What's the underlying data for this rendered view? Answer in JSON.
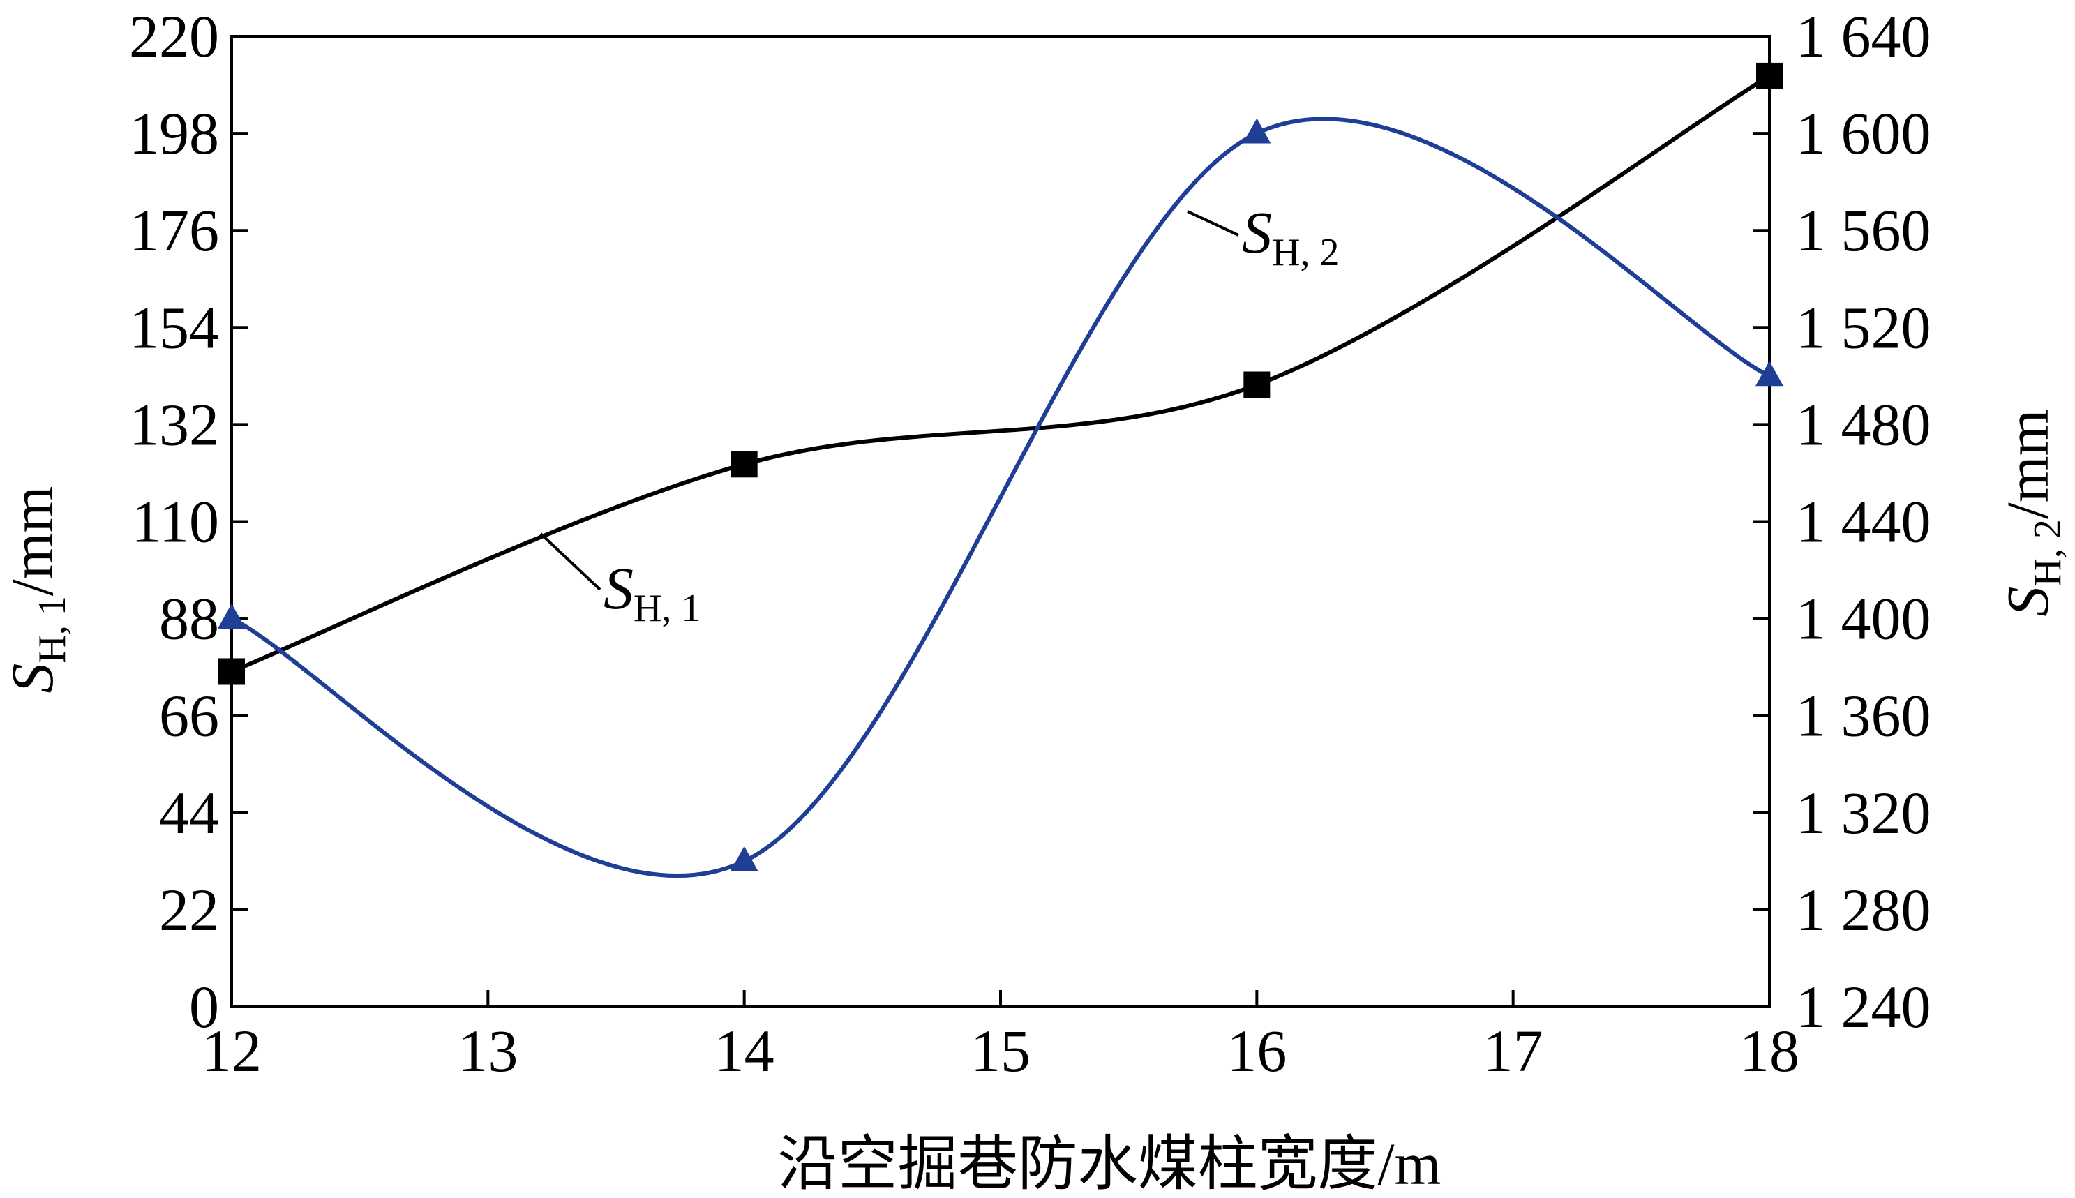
{
  "chart_data": {
    "type": "line",
    "xlabel": "沿空掘巷防水煤柱宽度/m",
    "ylabel_left": {
      "symbol": "S",
      "subscript": "H, 1",
      "unit": "/mm"
    },
    "ylabel_right": {
      "symbol": "S",
      "subscript": "H, 2",
      "unit": "/mm"
    },
    "x_ticks": [
      12,
      13,
      14,
      15,
      16,
      17,
      18
    ],
    "x_tick_labels": [
      "12",
      "13",
      "14",
      "15",
      "16",
      "17",
      "18"
    ],
    "xlim": [
      12,
      18
    ],
    "y_left_ticks": [
      0,
      22,
      44,
      66,
      88,
      110,
      132,
      154,
      176,
      198,
      220
    ],
    "y_left_tick_labels": [
      "0",
      "22",
      "44",
      "66",
      "88",
      "110",
      "132",
      "154",
      "176",
      "198",
      "220"
    ],
    "ylim_left": [
      0,
      220
    ],
    "y_right_ticks": [
      1240,
      1280,
      1320,
      1360,
      1400,
      1440,
      1480,
      1520,
      1560,
      1600,
      1640
    ],
    "y_right_tick_labels": [
      "1 240",
      "1 280",
      "1 320",
      "1 360",
      "1 400",
      "1 440",
      "1 480",
      "1 520",
      "1 560",
      "1 600",
      "1 640"
    ],
    "ylim_right": [
      1240,
      1640
    ],
    "grid": false,
    "series": [
      {
        "name": "S_H,1",
        "label": {
          "symbol": "S",
          "subscript": "H, 1"
        },
        "axis": "left",
        "marker": "square",
        "color": "#000000",
        "x": [
          12,
          14,
          16,
          18
        ],
        "y": [
          76,
          123,
          141,
          211
        ]
      },
      {
        "name": "S_H,2",
        "label": {
          "symbol": "S",
          "subscript": "H, 2"
        },
        "axis": "right",
        "marker": "triangle",
        "color": "#1f3f97",
        "x": [
          12,
          14,
          16,
          18
        ],
        "y": [
          1400,
          1300,
          1600,
          1500
        ]
      }
    ]
  }
}
